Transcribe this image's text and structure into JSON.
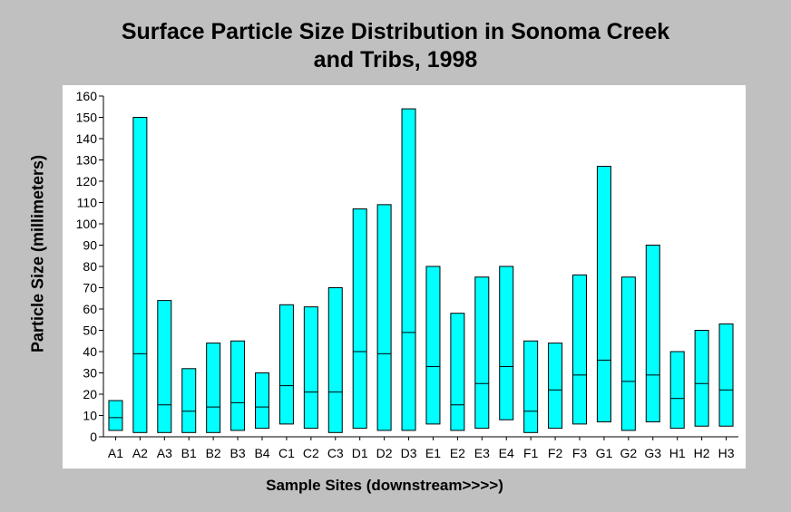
{
  "chart_data": {
    "type": "bar",
    "title": [
      "Surface Particle Size Distribution in Sonoma Creek",
      "and Tribs, 1998"
    ],
    "xlabel": "Sample Sites (downstream>>>>)",
    "ylabel": "Particle Size (millimeters)",
    "ylim": [
      0,
      160
    ],
    "yticks": [
      "0",
      "10",
      "20",
      "30",
      "40",
      "50",
      "60",
      "70",
      "80",
      "90",
      "100",
      "110",
      "120",
      "130",
      "140",
      "150",
      "160"
    ],
    "grid": false,
    "bar_color": "#00ffff",
    "categories": [
      "A1",
      "A2",
      "A3",
      "B1",
      "B2",
      "B3",
      "B4",
      "C1",
      "C2",
      "C3",
      "D1",
      "D2",
      "D3",
      "E1",
      "E2",
      "E3",
      "E4",
      "F1",
      "F2",
      "F3",
      "G1",
      "G2",
      "G3",
      "H1",
      "H2",
      "H3"
    ],
    "series": [
      {
        "values_low": [
          3,
          2,
          2,
          2,
          2,
          3,
          4,
          6,
          4,
          2,
          4,
          3,
          3,
          6,
          3,
          4,
          8,
          2,
          4,
          6,
          7,
          3,
          7,
          4,
          5,
          5
        ]
      },
      {
        "values_mid": [
          9,
          39,
          15,
          12,
          14,
          16,
          14,
          24,
          21,
          21,
          40,
          39,
          49,
          33,
          15,
          25,
          33,
          12,
          22,
          29,
          36,
          26,
          29,
          18,
          25,
          22
        ]
      },
      {
        "values_high": [
          17,
          150,
          64,
          32,
          44,
          45,
          30,
          62,
          61,
          70,
          107,
          109,
          154,
          80,
          58,
          75,
          80,
          45,
          44,
          76,
          127,
          75,
          90,
          40,
          50,
          53
        ]
      }
    ]
  }
}
